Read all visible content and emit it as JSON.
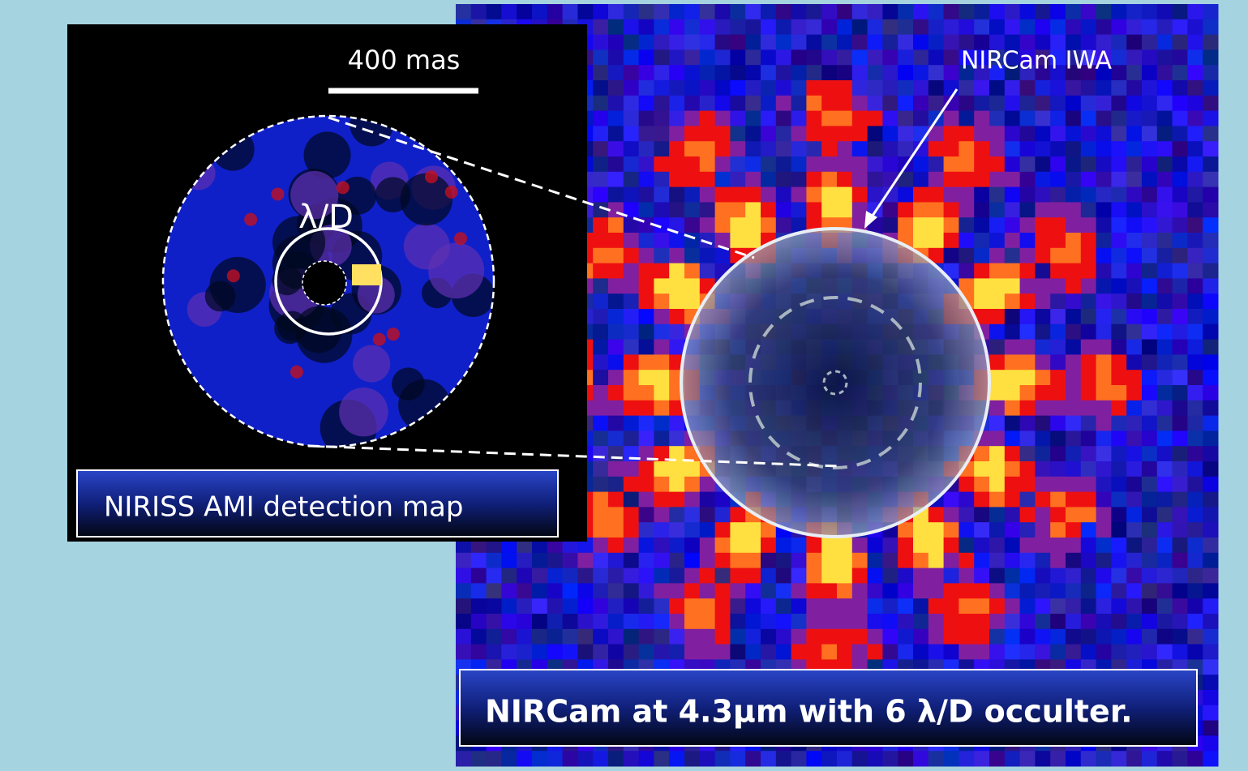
{
  "left_panel": {
    "scale_bar_label": "400 mas",
    "circle_label": "λ/D",
    "caption": "NIRISS AMI detection map"
  },
  "right_panel": {
    "annotation": "NIRCam IWA",
    "caption": "NIRCam at 4.3μm with 6 λ/D occulter."
  }
}
